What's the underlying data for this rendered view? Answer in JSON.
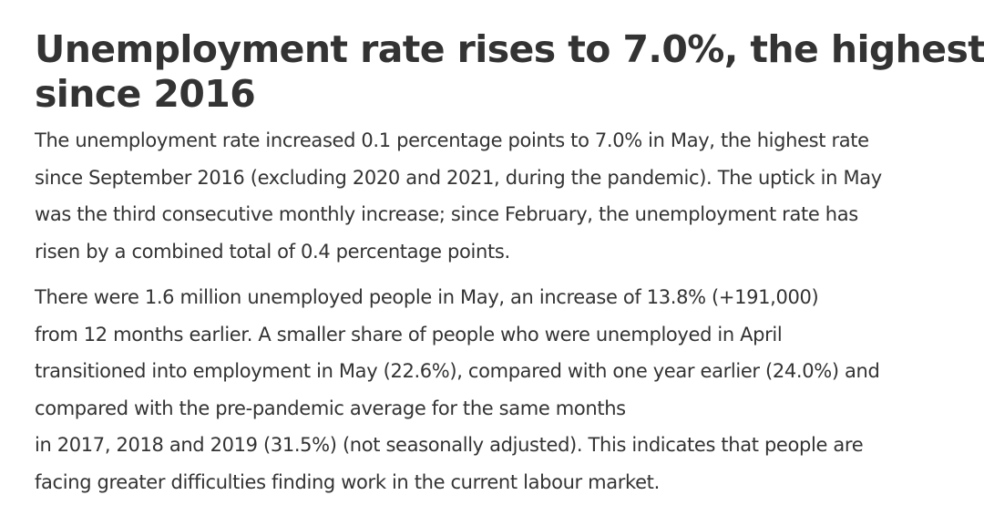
{
  "article": {
    "heading": {
      "lines": [
        "Unemployment rate rises to 7.0%, the highest",
        "since 2016"
      ]
    },
    "paragraph1": {
      "lines": [
        "The unemployment rate increased 0.1 percentage points to 7.0% in May, the highest rate",
        "since September 2016 (excluding 2020 and 2021, during the pandemic). The uptick in May",
        "was the third consecutive monthly increase; since February, the unemployment rate has",
        "risen by a combined total of 0.4 percentage points."
      ]
    },
    "paragraph2": {
      "lines": [
        "There were 1.6 million unemployed people in May, an increase of 13.8% (+191,000)",
        "from 12 months earlier. A smaller share of people who were unemployed in April",
        "transitioned into employment in May (22.6%), compared with one year earlier (24.0%) and",
        "compared with the pre-pandemic average for the same months",
        "in 2017, 2018 and 2019 (31.5%) (not seasonally adjusted). This indicates that people are",
        "facing greater difficulties finding work in the current labour market."
      ]
    }
  }
}
